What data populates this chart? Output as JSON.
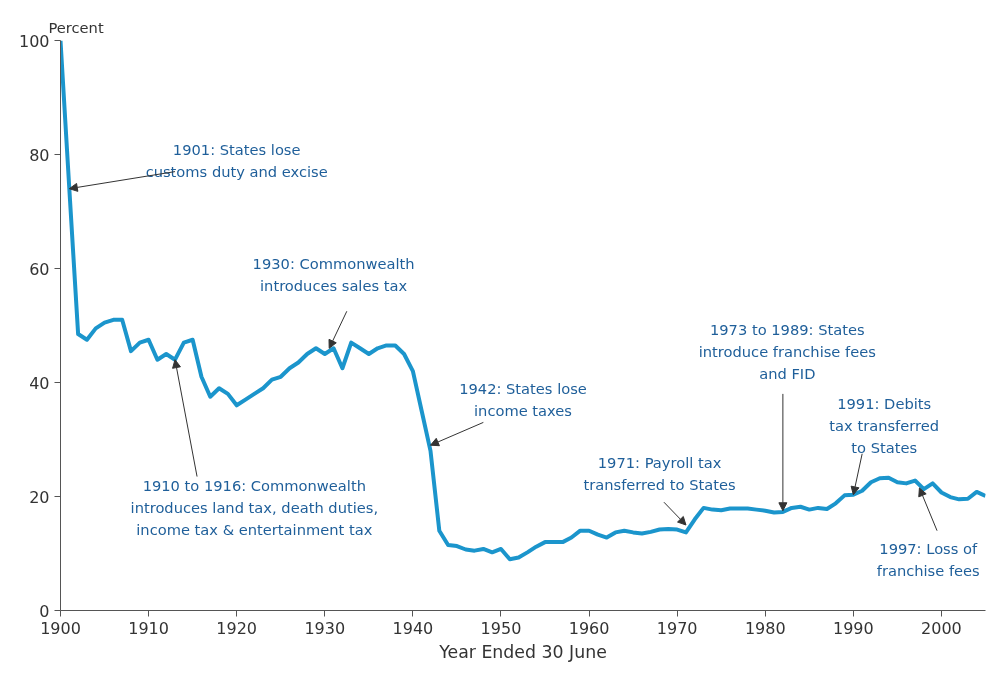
{
  "chart_data": {
    "type": "line",
    "xlabel": "Year Ended 30 June",
    "ylabel": "Percent",
    "x": [
      1900,
      1901,
      1902,
      1903,
      1904,
      1905,
      1906,
      1907,
      1908,
      1909,
      1910,
      1911,
      1912,
      1913,
      1914,
      1915,
      1916,
      1917,
      1918,
      1919,
      1920,
      1921,
      1922,
      1923,
      1924,
      1925,
      1926,
      1927,
      1928,
      1929,
      1930,
      1931,
      1932,
      1933,
      1934,
      1935,
      1936,
      1937,
      1938,
      1939,
      1940,
      1941,
      1942,
      1943,
      1944,
      1945,
      1946,
      1947,
      1948,
      1949,
      1950,
      1951,
      1952,
      1953,
      1954,
      1955,
      1956,
      1957,
      1958,
      1959,
      1960,
      1961,
      1962,
      1963,
      1964,
      1965,
      1966,
      1967,
      1968,
      1969,
      1970,
      1971,
      1972,
      1973,
      1974,
      1975,
      1976,
      1977,
      1978,
      1979,
      1980,
      1981,
      1982,
      1983,
      1984,
      1985,
      1986,
      1987,
      1988,
      1989,
      1990,
      1991,
      1992,
      1993,
      1994,
      1995,
      1996,
      1997,
      1998,
      1999,
      2000,
      2001,
      2002,
      2003,
      2004,
      2005
    ],
    "series": [
      {
        "color": "#1b95cc",
        "values": [
          100,
          74,
          48.5,
          47.5,
          49.5,
          50.5,
          51,
          51,
          45.5,
          47,
          47.5,
          44,
          45,
          44,
          47,
          47.5,
          41,
          37.5,
          39,
          38,
          36,
          37,
          38,
          39,
          40.5,
          41,
          42.5,
          43.5,
          45,
          46,
          45,
          46,
          42.5,
          47,
          46,
          45,
          46,
          46.5,
          46.5,
          45,
          42,
          35,
          28,
          14,
          11.5,
          11.3,
          10.7,
          10.5,
          10.8,
          10.2,
          10.8,
          9,
          9.3,
          10.2,
          11.2,
          12,
          12,
          12,
          12.8,
          14,
          14,
          13.3,
          12.8,
          13.7,
          14,
          13.7,
          13.5,
          13.8,
          14.2,
          14.3,
          14.2,
          13.7,
          16,
          18,
          17.7,
          17.6,
          17.9,
          17.9,
          17.9,
          17.7,
          17.5,
          17.2,
          17.3,
          18,
          18.2,
          17.7,
          18,
          17.8,
          18.8,
          20.2,
          20.3,
          21,
          22.5,
          23.2,
          23.3,
          22.5,
          22.3,
          22.8,
          21.3,
          22.3,
          20.7,
          19.9,
          19.5,
          19.6,
          20.8,
          20.1
        ]
      }
    ],
    "xlim": [
      1900,
      2005
    ],
    "xticks": [
      1900,
      1910,
      1920,
      1930,
      1940,
      1950,
      1960,
      1970,
      1980,
      1990,
      2000
    ],
    "ylim": [
      0,
      100
    ],
    "yticks": [
      0,
      20,
      40,
      60,
      80,
      100
    ],
    "grid": false,
    "marker": "none",
    "line_style": "solid",
    "annotations": [
      {
        "text": "1901: States lose\ncustoms duty and excise",
        "x": 1901,
        "y": 74
      },
      {
        "text": "1910 to 1916: Commonwealth\nintroduces land tax, death duties,\nincome tax & entertainment tax",
        "x": 1913,
        "y": 44
      },
      {
        "text": "1930: Commonwealth\nintroduces sales tax",
        "x": 1930.5,
        "y": 46
      },
      {
        "text": "1942: States lose\nincome taxes",
        "x": 1942,
        "y": 29
      },
      {
        "text": "1971: Payroll tax\ntransferred to States",
        "x": 1971,
        "y": 15
      },
      {
        "text": "1973 to 1989: States\nintroduce franchise fees\nand FID",
        "x": 1982,
        "y": 17.5
      },
      {
        "text": "1991: Debits\ntax transferred\nto States",
        "x": 1990,
        "y": 20.3
      },
      {
        "text": "1997: Loss of\nfranchise fees",
        "x": 1997.5,
        "y": 21.5
      }
    ]
  }
}
